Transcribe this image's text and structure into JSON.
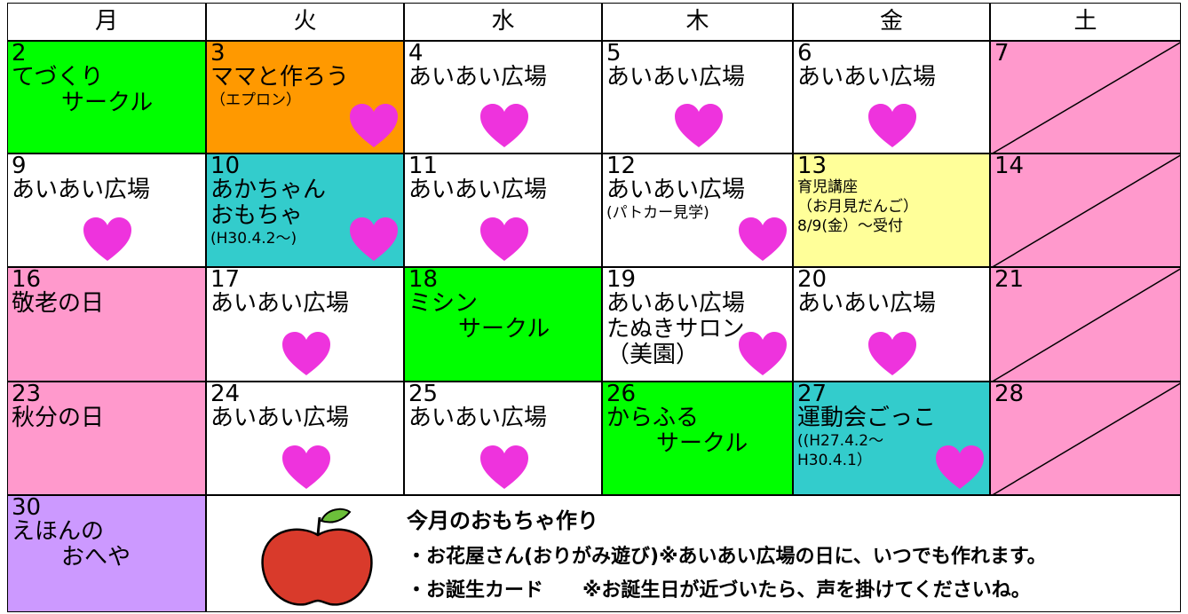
{
  "header": [
    "月",
    "火",
    "水",
    "木",
    "金",
    "土"
  ],
  "weeks": [
    [
      {
        "day": "2",
        "lines": [
          "てづくり",
          "サークル"
        ],
        "bg": "#00ff00"
      },
      {
        "day": "3",
        "lines": [
          "ママと作ろう",
          "（エプロン）"
        ],
        "bg": "#ff9900",
        "heart": true
      },
      {
        "day": "4",
        "lines": [
          "あいあい広場"
        ],
        "bg": "#ffffff",
        "heart": true
      },
      {
        "day": "5",
        "lines": [
          "あいあい広場"
        ],
        "bg": "#ffffff",
        "heart": true
      },
      {
        "day": "6",
        "lines": [
          "あいあい広場"
        ],
        "bg": "#ffffff",
        "heart": true
      },
      {
        "day": "7",
        "lines": [],
        "bg": "#ff99cc"
      }
    ],
    [
      {
        "day": "9",
        "lines": [
          "あいあい広場"
        ],
        "bg": "#ffffff",
        "heart": true
      },
      {
        "day": "10",
        "lines": [
          "あかちゃん",
          "おもちゃ",
          "(H30.4.2～)"
        ],
        "bg": "#33cccc",
        "heart": true
      },
      {
        "day": "11",
        "lines": [
          "あいあい広場"
        ],
        "bg": "#ffffff",
        "heart": true
      },
      {
        "day": "12",
        "lines": [
          "あいあい広場",
          "(パトカー見学)"
        ],
        "bg": "#ffffff",
        "heart": true
      },
      {
        "day": "13",
        "lines": [
          "育児講座",
          "（お月見だんご）",
          "8/9(金）～受付"
        ],
        "bg": "#ffff99"
      },
      {
        "day": "14",
        "lines": [],
        "bg": "#ff99cc"
      }
    ],
    [
      {
        "day": "16",
        "lines": [
          "敬老の日"
        ],
        "bg": "#ff99cc"
      },
      {
        "day": "17",
        "lines": [
          "あいあい広場"
        ],
        "bg": "#ffffff",
        "heart": true
      },
      {
        "day": "18",
        "lines": [
          "ミシン",
          "サークル"
        ],
        "bg": "#00ff00"
      },
      {
        "day": "19",
        "lines": [
          "あいあい広場",
          "たぬきサロン",
          "（美園）"
        ],
        "bg": "#ffffff",
        "heart": true
      },
      {
        "day": "20",
        "lines": [
          "あいあい広場"
        ],
        "bg": "#ffffff",
        "heart": true
      },
      {
        "day": "21",
        "lines": [],
        "bg": "#ff99cc"
      }
    ],
    [
      {
        "day": "23",
        "lines": [
          "秋分の日"
        ],
        "bg": "#ff99cc"
      },
      {
        "day": "24",
        "lines": [
          "あいあい広場"
        ],
        "bg": "#ffffff",
        "heart": true
      },
      {
        "day": "25",
        "lines": [
          "あいあい広場"
        ],
        "bg": "#ffffff",
        "heart": true
      },
      {
        "day": "26",
        "lines": [
          "からふる",
          "サークル"
        ],
        "bg": "#00ff00"
      },
      {
        "day": "27",
        "lines": [
          "運動会ごっこ",
          "((H27.4.2～",
          "H30.4.1）"
        ],
        "bg": "#33cccc",
        "heart": true
      },
      {
        "day": "28",
        "lines": [],
        "bg": "#ff99cc"
      }
    ],
    [
      {
        "day": "30",
        "lines": [
          "えほんの",
          "おへや"
        ],
        "bg": "#cc99ff"
      }
    ]
  ],
  "note": {
    "title": "今月のおもちゃ作り",
    "items": [
      "・お花屋さん(おりがみ遊び)※あいあい広場の日に、いつでも作れます。",
      "・お誕生カード　　※お誕生日が近づいたら、声を掛けてくださいね。"
    ]
  }
}
